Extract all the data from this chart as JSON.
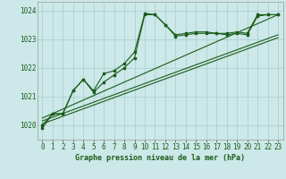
{
  "background_color": "#cce8e8",
  "grid_color": "#aacccc",
  "line_color": "#1a5c1a",
  "marker_color": "#1a5c1a",
  "title": "Graphe pression niveau de la mer (hPa)",
  "xlim": [
    -0.5,
    23.5
  ],
  "ylim": [
    1019.5,
    1024.3
  ],
  "yticks": [
    1020,
    1021,
    1022,
    1023,
    1024
  ],
  "xticks": [
    0,
    1,
    2,
    3,
    4,
    5,
    6,
    7,
    8,
    9,
    10,
    11,
    12,
    13,
    14,
    15,
    16,
    17,
    18,
    19,
    20,
    21,
    22,
    23
  ],
  "series1_x": [
    0,
    1,
    2,
    3,
    4,
    5,
    6,
    7,
    8,
    9,
    10,
    11,
    12,
    13,
    14,
    15,
    16,
    17,
    18,
    19,
    20,
    21,
    22,
    23
  ],
  "series1_y": [
    1019.9,
    1020.4,
    1020.4,
    1021.2,
    1021.6,
    1021.2,
    1021.8,
    1021.9,
    1022.15,
    1022.55,
    1023.9,
    1023.85,
    1023.5,
    1023.15,
    1023.2,
    1023.25,
    1023.25,
    1023.2,
    1023.2,
    1023.25,
    1023.2,
    1023.85,
    1023.85,
    1023.85
  ],
  "series2_x": [
    0,
    1,
    2,
    3,
    4,
    5,
    6,
    7,
    8,
    9,
    10,
    11,
    12,
    13,
    14,
    15,
    16,
    17,
    18,
    19,
    20,
    21,
    22,
    23
  ],
  "series2_y": [
    1020.0,
    1020.4,
    1020.4,
    1021.2,
    1021.6,
    1021.15,
    1021.5,
    1021.75,
    1022.0,
    1022.35,
    1023.85,
    1023.85,
    1023.5,
    1023.1,
    1023.15,
    1023.2,
    1023.2,
    1023.2,
    1023.15,
    1023.2,
    1023.15,
    1023.8,
    1023.85,
    1023.85
  ],
  "series3_x": [
    0,
    23
  ],
  "series3_y": [
    1020.05,
    1023.05
  ],
  "series4_x": [
    0,
    23
  ],
  "series4_y": [
    1020.15,
    1023.15
  ],
  "series5_x": [
    0,
    23
  ],
  "series5_y": [
    1020.25,
    1023.85
  ]
}
